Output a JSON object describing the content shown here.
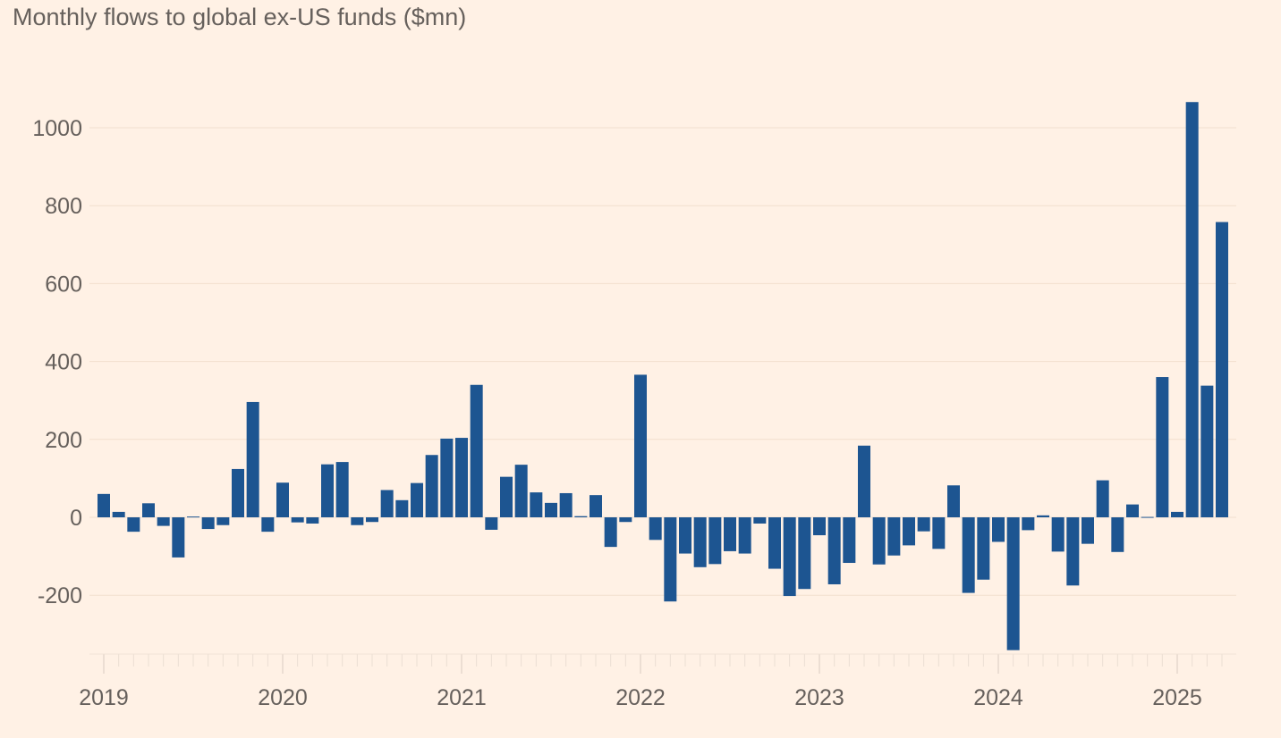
{
  "chart_data": {
    "type": "bar",
    "title": "Monthly flows to global ex-US funds ($mn)",
    "xlabel": "",
    "ylabel": "",
    "x_start": "2019-01",
    "x_end": "2025-04",
    "x_tick_labels": [
      "2019",
      "2020",
      "2021",
      "2022",
      "2023",
      "2024",
      "2025"
    ],
    "y_ticks": [
      -200,
      0,
      200,
      400,
      600,
      800,
      1000
    ],
    "y_tick_labels": [
      "-200",
      "0",
      "200",
      "400",
      "600",
      "800",
      "1000"
    ],
    "ylim": [
      -351,
      1100
    ],
    "grid": true,
    "bar_color": "#1d5591",
    "background": "#fff1e5",
    "values": [
      60,
      14,
      -37,
      36,
      -22,
      -103,
      2,
      -30,
      -20,
      124,
      296,
      -37,
      89,
      -13,
      -16,
      136,
      142,
      -20,
      -12,
      70,
      44,
      88,
      160,
      202,
      204,
      340,
      -32,
      104,
      135,
      64,
      37,
      62,
      3,
      57,
      -76,
      -12,
      366,
      -58,
      -216,
      -93,
      -128,
      -120,
      -87,
      -93,
      -16,
      -132,
      -202,
      -184,
      -46,
      -172,
      -117,
      184,
      -121,
      -98,
      -72,
      -36,
      -81,
      82,
      -194,
      -160,
      -63,
      -341,
      -33,
      5,
      -88,
      -175,
      -68,
      95,
      -89,
      33,
      1,
      360,
      14,
      1066,
      338,
      758
    ]
  }
}
